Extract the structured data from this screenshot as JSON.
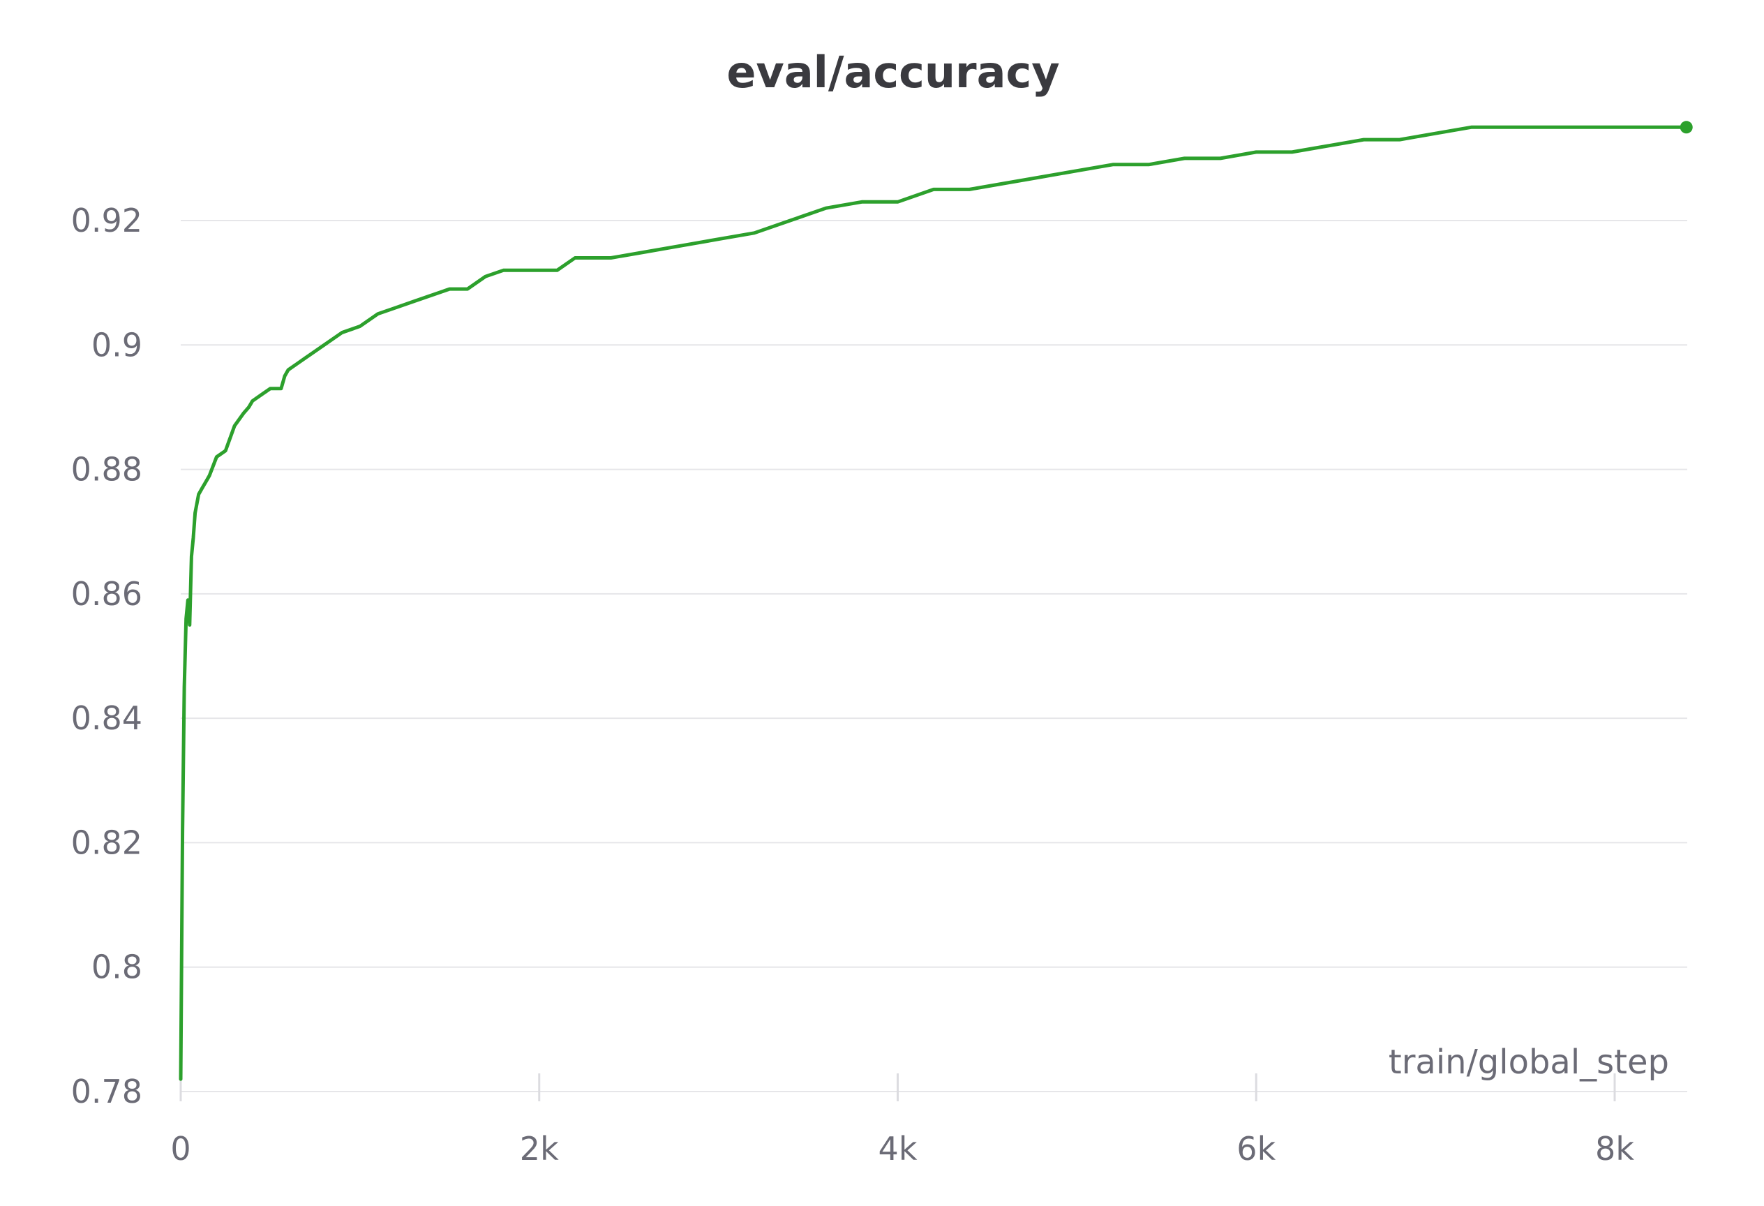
{
  "chart_data": {
    "type": "line",
    "title": "eval/accuracy",
    "xlabel": "train/global_step",
    "ylabel": "",
    "xlim": [
      0,
      8400
    ],
    "ylim": [
      0.78,
      0.937
    ],
    "x_ticks": [
      0,
      2000,
      4000,
      6000,
      8000
    ],
    "x_tick_labels": [
      "0",
      "2k",
      "4k",
      "6k",
      "8k"
    ],
    "y_ticks": [
      0.78,
      0.8,
      0.82,
      0.84,
      0.86,
      0.88,
      0.9,
      0.92
    ],
    "y_tick_labels": [
      "0.78",
      "0.8",
      "0.82",
      "0.84",
      "0.86",
      "0.88",
      "0.9",
      "0.92"
    ],
    "grid": true,
    "colors": {
      "series": "#2ca02c",
      "grid": "#e6e6e9",
      "text": "#6b6b76",
      "title": "#3a3a3f"
    },
    "series": [
      {
        "x": [
          0,
          10,
          20,
          30,
          40,
          50,
          60,
          70,
          80,
          100,
          120,
          140,
          160,
          200,
          250,
          300,
          350,
          380,
          400,
          450,
          500,
          560,
          580,
          600,
          650,
          700,
          800,
          900,
          1000,
          1100,
          1200,
          1300,
          1400,
          1500,
          1600,
          1700,
          1800,
          1900,
          2000,
          2100,
          2200,
          2400,
          2600,
          2800,
          3000,
          3200,
          3400,
          3600,
          3800,
          4000,
          4200,
          4400,
          4600,
          4800,
          5000,
          5200,
          5400,
          5600,
          5800,
          6000,
          6200,
          6400,
          6600,
          6800,
          7000,
          7200,
          7400,
          7600,
          7800,
          8000,
          8200,
          8400
        ],
        "y": [
          0.782,
          0.822,
          0.845,
          0.856,
          0.859,
          0.855,
          0.866,
          0.869,
          0.873,
          0.876,
          0.877,
          0.878,
          0.879,
          0.882,
          0.883,
          0.887,
          0.889,
          0.89,
          0.891,
          0.892,
          0.893,
          0.893,
          0.895,
          0.896,
          0.897,
          0.898,
          0.9,
          0.902,
          0.903,
          0.905,
          0.906,
          0.907,
          0.908,
          0.909,
          0.909,
          0.911,
          0.912,
          0.912,
          0.912,
          0.912,
          0.914,
          0.914,
          0.915,
          0.916,
          0.917,
          0.918,
          0.92,
          0.922,
          0.923,
          0.923,
          0.925,
          0.925,
          0.926,
          0.927,
          0.928,
          0.929,
          0.929,
          0.93,
          0.93,
          0.931,
          0.931,
          0.932,
          0.933,
          0.933,
          0.934,
          0.935,
          0.935,
          0.935,
          0.935,
          0.935,
          0.935,
          0.935
        ]
      }
    ]
  }
}
